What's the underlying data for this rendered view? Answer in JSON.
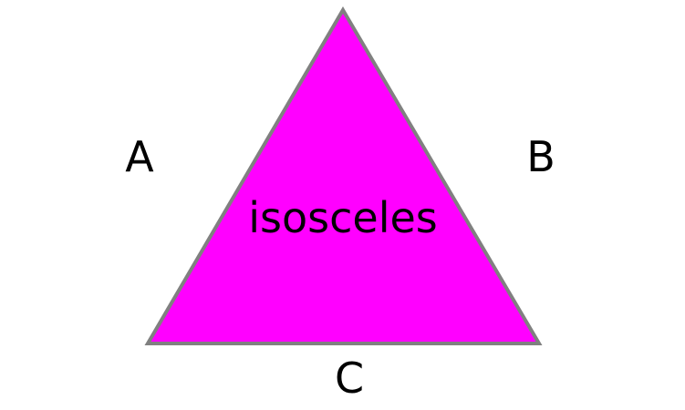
{
  "diagram": {
    "center_label": "isosceles",
    "side_labels": {
      "left": "A",
      "right": "B",
      "bottom": "C"
    }
  },
  "colors": {
    "triangle_fill": "#ff00ff",
    "triangle_stroke": "#808080",
    "text": "#000000",
    "background": "#ffffff"
  }
}
